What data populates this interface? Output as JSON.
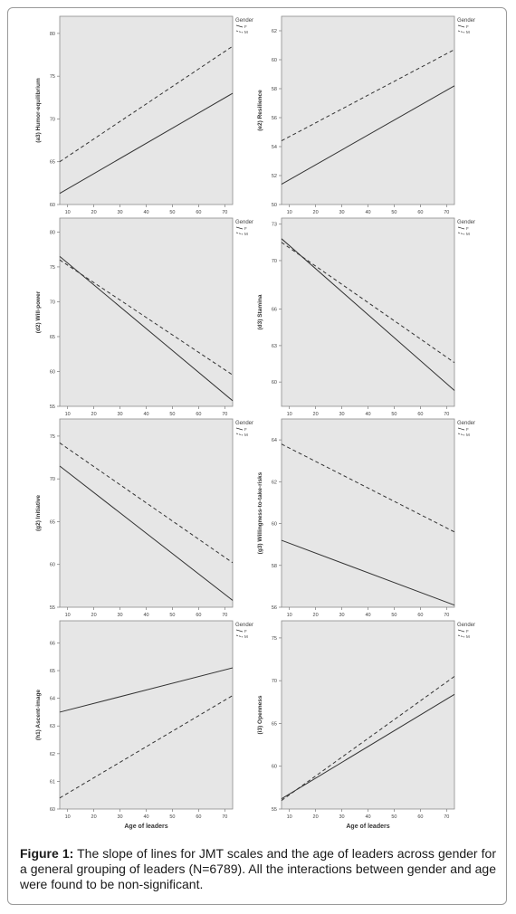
{
  "figure": {
    "caption_label": "Figure 1:",
    "caption_text": "The slope of lines for JMT scales and the age of leaders across gender for a general grouping of leaders (N=6789). All the interactions between gender and age were found to be non-significant."
  },
  "colors": {
    "plot_bg": "#e6e6e6",
    "line_f": "#333333",
    "line_m": "#333333",
    "frame": "#9a9a9a"
  },
  "chart_data": [
    {
      "type": "line",
      "ylabel": "(a3) Humor-equilibrium",
      "xlabel": "",
      "legend_title": "Gender",
      "x_ticks": [
        10,
        20,
        30,
        40,
        50,
        60,
        70
      ],
      "xlim": [
        7,
        73
      ],
      "y_ticks": [
        "60",
        "65",
        "70",
        "75",
        "80"
      ],
      "ylim": [
        60,
        82
      ],
      "series": [
        {
          "name": "F",
          "x": [
            7,
            73
          ],
          "y": [
            61.3,
            73.0
          ]
        },
        {
          "name": "M",
          "x": [
            7,
            73
          ],
          "y": [
            65.0,
            78.5
          ]
        }
      ]
    },
    {
      "type": "line",
      "ylabel": "(e2) Resilience",
      "xlabel": "",
      "legend_title": "Gender",
      "x_ticks": [
        10,
        20,
        30,
        40,
        50,
        60,
        70
      ],
      "xlim": [
        7,
        73
      ],
      "y_ticks": [
        "50",
        "52",
        "54",
        "56",
        "58",
        "60",
        "62"
      ],
      "ylim": [
        50,
        63
      ],
      "series": [
        {
          "name": "F",
          "x": [
            7,
            73
          ],
          "y": [
            51.4,
            58.2
          ]
        },
        {
          "name": "M",
          "x": [
            7,
            73
          ],
          "y": [
            54.4,
            60.7
          ]
        }
      ]
    },
    {
      "type": "line",
      "ylabel": "(d2) Will-power",
      "xlabel": "",
      "legend_title": "Gender",
      "x_ticks": [
        10,
        20,
        30,
        40,
        50,
        60,
        70
      ],
      "xlim": [
        7,
        73
      ],
      "y_ticks": [
        "55",
        "60",
        "65",
        "70",
        "75",
        "80"
      ],
      "ylim": [
        55,
        82
      ],
      "series": [
        {
          "name": "F",
          "x": [
            7,
            73
          ],
          "y": [
            76.5,
            55.8
          ]
        },
        {
          "name": "M",
          "x": [
            7,
            73
          ],
          "y": [
            76.0,
            59.5
          ]
        }
      ]
    },
    {
      "type": "line",
      "ylabel": "(d3) Stamina",
      "xlabel": "",
      "legend_title": "Gender",
      "x_ticks": [
        10,
        20,
        30,
        40,
        50,
        60,
        70
      ],
      "xlim": [
        7,
        73
      ],
      "y_ticks": [
        "60",
        "63",
        "66",
        "70",
        "73"
      ],
      "ylim": [
        58,
        73.5
      ],
      "series": [
        {
          "name": "F",
          "x": [
            7,
            73
          ],
          "y": [
            71.8,
            59.3
          ]
        },
        {
          "name": "M",
          "x": [
            7,
            73
          ],
          "y": [
            71.5,
            61.6
          ]
        }
      ]
    },
    {
      "type": "line",
      "ylabel": "(g2) Initiative",
      "xlabel": "",
      "legend_title": "Gender",
      "x_ticks": [
        10,
        20,
        30,
        40,
        50,
        60,
        70
      ],
      "xlim": [
        7,
        73
      ],
      "y_ticks": [
        "55",
        "60",
        "65",
        "70",
        "75"
      ],
      "ylim": [
        55,
        77
      ],
      "series": [
        {
          "name": "F",
          "x": [
            7,
            73
          ],
          "y": [
            71.5,
            55.8
          ]
        },
        {
          "name": "M",
          "x": [
            7,
            73
          ],
          "y": [
            74.2,
            60.2
          ]
        }
      ]
    },
    {
      "type": "line",
      "ylabel": "(g3) Willingness-to-take-risks",
      "xlabel": "",
      "legend_title": "Gender",
      "x_ticks": [
        10,
        20,
        30,
        40,
        50,
        60,
        70
      ],
      "xlim": [
        7,
        73
      ],
      "y_ticks": [
        "56",
        "58",
        "60",
        "62",
        "64"
      ],
      "ylim": [
        56,
        65
      ],
      "series": [
        {
          "name": "F",
          "x": [
            7,
            73
          ],
          "y": [
            59.2,
            56.1
          ]
        },
        {
          "name": "M",
          "x": [
            7,
            73
          ],
          "y": [
            63.8,
            59.6
          ]
        }
      ]
    },
    {
      "type": "line",
      "ylabel": "(h1) Ascent-image",
      "xlabel": "Age of leaders",
      "legend_title": "Gender",
      "x_ticks": [
        10,
        20,
        30,
        40,
        50,
        60,
        70
      ],
      "xlim": [
        7,
        73
      ],
      "y_ticks": [
        "60",
        "61",
        "62",
        "63",
        "64",
        "65",
        "66"
      ],
      "ylim": [
        60,
        66.8
      ],
      "series": [
        {
          "name": "F",
          "x": [
            7,
            73
          ],
          "y": [
            63.5,
            65.1
          ]
        },
        {
          "name": "M",
          "x": [
            7,
            73
          ],
          "y": [
            60.4,
            64.1
          ]
        }
      ]
    },
    {
      "type": "line",
      "ylabel": "(i3) Openness",
      "xlabel": "Age of leaders",
      "legend_title": "Gender",
      "x_ticks": [
        10,
        20,
        30,
        40,
        50,
        60,
        70
      ],
      "xlim": [
        7,
        73
      ],
      "y_ticks": [
        "55",
        "60",
        "65",
        "70",
        "75"
      ],
      "ylim": [
        55,
        77
      ],
      "series": [
        {
          "name": "F",
          "x": [
            7,
            73
          ],
          "y": [
            56.2,
            68.4
          ]
        },
        {
          "name": "M",
          "x": [
            7,
            73
          ],
          "y": [
            56.0,
            70.5
          ]
        }
      ]
    }
  ]
}
